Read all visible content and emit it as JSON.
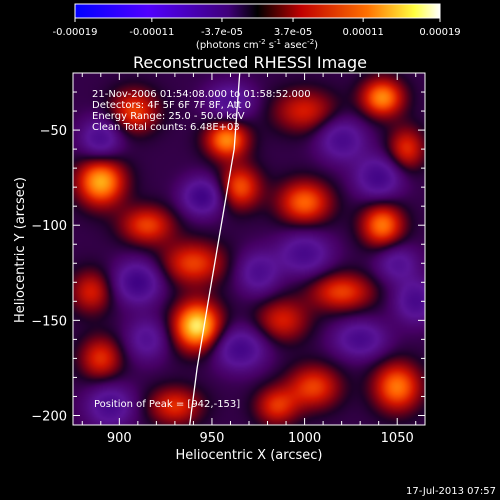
{
  "colorbar": {
    "tick_labels": [
      "-0.00019",
      "-0.00011",
      "-3.7e-05",
      "3.7e-05",
      "0.00011",
      "0.00019"
    ],
    "tick_values": [
      -0.00019,
      -0.00011,
      -3.7e-05,
      3.7e-05,
      0.00011,
      0.00019
    ],
    "range": [
      -0.00019,
      0.00019
    ],
    "units_main": "(photons cm",
    "units_exp1": "-2",
    "units_mid": " s",
    "units_exp2": "-1",
    "units_end": " asec",
    "units_exp3": "-2",
    "units_close": ")",
    "colormap": [
      "#0000ff",
      "#5a00ff",
      "#000000",
      "#d00000",
      "#ff8000",
      "#ffff60",
      "#ffffff"
    ]
  },
  "chart_data": {
    "type": "heatmap",
    "title": "Reconstructed RHESSI Image",
    "xlabel": "Heliocentric X (arcsec)",
    "ylabel": "Heliocentric Y (arcsec)",
    "xlim": [
      875,
      1065
    ],
    "ylim": [
      -205,
      -20
    ],
    "x_ticks": [
      900,
      950,
      1000,
      1050
    ],
    "x_tick_labels": [
      "900",
      "950",
      "1000",
      "1050"
    ],
    "y_ticks": [
      -50,
      -100,
      -150,
      -200
    ],
    "y_tick_labels": [
      "−50",
      "−100",
      "−150",
      "−200"
    ],
    "info_lines": [
      "21-Nov-2006 01:54:08.000 to 01:58:52.000",
      "Detectors: 4F 5F 6F 7F 8F, Att 0",
      "Energy Range: 25.0 - 50.0 keV",
      "Clean    Total counts: 6.48E+03"
    ],
    "peak_label": "Position of Peak = [942,-153]",
    "limb_curve": [
      [
        965,
        -20
      ],
      [
        962,
        -60
      ],
      [
        955,
        -100
      ],
      [
        948,
        -140
      ],
      [
        942,
        -175
      ],
      [
        938,
        -205
      ]
    ],
    "blobs": [
      [
        942,
        -153,
        9,
        9,
        1.0
      ],
      [
        890,
        -77,
        9,
        9,
        0.85
      ],
      [
        958,
        -55,
        8,
        7,
        0.75
      ],
      [
        1042,
        -33,
        8,
        7,
        0.75
      ],
      [
        1042,
        -100,
        8,
        8,
        0.7
      ],
      [
        1000,
        -88,
        10,
        8,
        0.65
      ],
      [
        1050,
        -185,
        9,
        9,
        0.7
      ],
      [
        1005,
        -185,
        10,
        8,
        0.55
      ],
      [
        908,
        -40,
        9,
        8,
        0.55
      ],
      [
        940,
        -120,
        12,
        8,
        0.55
      ],
      [
        1020,
        -135,
        12,
        7,
        0.55
      ],
      [
        965,
        -80,
        8,
        8,
        0.6
      ],
      [
        985,
        -195,
        8,
        7,
        0.5
      ],
      [
        885,
        -135,
        8,
        8,
        0.45
      ],
      [
        890,
        -170,
        8,
        8,
        0.5
      ],
      [
        930,
        -195,
        10,
        7,
        0.5
      ],
      [
        1000,
        -40,
        12,
        8,
        0.45
      ],
      [
        988,
        -150,
        10,
        8,
        0.45
      ],
      [
        1055,
        -60,
        7,
        8,
        0.5
      ],
      [
        915,
        -100,
        10,
        -7,
        0.55
      ],
      [
        945,
        -85,
        8,
        7,
        -0.6
      ],
      [
        910,
        -130,
        9,
        8,
        -0.6
      ],
      [
        1040,
        -75,
        9,
        8,
        -0.55
      ],
      [
        1060,
        -140,
        8,
        8,
        -0.5
      ],
      [
        1030,
        -160,
        10,
        7,
        -0.5
      ],
      [
        965,
        -165,
        10,
        8,
        -0.55
      ],
      [
        895,
        -195,
        9,
        8,
        -0.5
      ],
      [
        1000,
        -115,
        10,
        8,
        -0.5
      ],
      [
        960,
        -35,
        9,
        7,
        -0.45
      ],
      [
        890,
        -55,
        8,
        8,
        -0.5
      ],
      [
        975,
        -125,
        8,
        8,
        -0.45
      ],
      [
        915,
        -160,
        8,
        8,
        -0.4
      ],
      [
        1020,
        -55,
        9,
        8,
        -0.5
      ],
      [
        1050,
        -120,
        8,
        7,
        -0.4
      ]
    ]
  },
  "footer": {
    "date": "17-Jul-2013 07:57"
  }
}
